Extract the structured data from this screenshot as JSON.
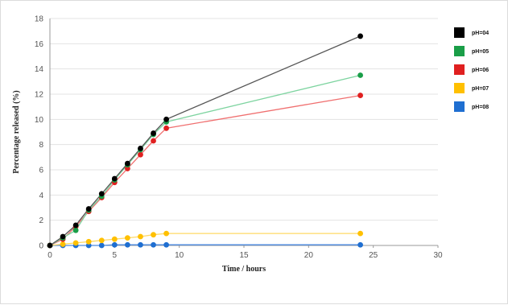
{
  "chart_data": {
    "type": "line",
    "title": "",
    "xlabel": "Time / hours",
    "ylabel": "Percentage released (%)",
    "xlim": [
      0,
      30
    ],
    "ylim": [
      0,
      18
    ],
    "x_ticks": [
      0,
      5,
      10,
      15,
      20,
      25,
      30
    ],
    "y_ticks": [
      0,
      2,
      4,
      6,
      8,
      10,
      12,
      14,
      16,
      18
    ],
    "grid": "horizontal",
    "legend_position": "right",
    "series": [
      {
        "name": "pH=04",
        "color": "#000000",
        "line_color": "#555555",
        "x": [
          0,
          1,
          2,
          3,
          4,
          5,
          6,
          7,
          8,
          9,
          24
        ],
        "y": [
          0,
          0.7,
          1.6,
          2.9,
          4.1,
          5.3,
          6.5,
          7.7,
          8.9,
          10.0,
          16.6
        ]
      },
      {
        "name": "pH=05",
        "color": "#1a9e48",
        "line_color": "#7ed4a0",
        "x": [
          0,
          1,
          2,
          3,
          4,
          5,
          6,
          7,
          8,
          9,
          24
        ],
        "y": [
          0,
          0.6,
          1.2,
          2.8,
          3.9,
          5.2,
          6.4,
          7.6,
          8.8,
          9.8,
          13.5
        ]
      },
      {
        "name": "pH=06",
        "color": "#e02020",
        "line_color": "#f07070",
        "x": [
          0,
          1,
          2,
          3,
          4,
          5,
          6,
          7,
          8,
          9,
          24
        ],
        "y": [
          0,
          0.5,
          1.5,
          2.7,
          3.8,
          5.0,
          6.1,
          7.2,
          8.3,
          9.3,
          11.9
        ]
      },
      {
        "name": "pH=07",
        "color": "#ffc000",
        "line_color": "#ffd966",
        "x": [
          0,
          1,
          2,
          3,
          4,
          5,
          6,
          7,
          8,
          9,
          24
        ],
        "y": [
          0,
          0.1,
          0.2,
          0.3,
          0.4,
          0.5,
          0.6,
          0.7,
          0.85,
          0.95,
          0.95
        ]
      },
      {
        "name": "pH=08",
        "color": "#1f6fd1",
        "line_color": "#4a8ae0",
        "x": [
          0,
          1,
          2,
          3,
          4,
          5,
          6,
          7,
          8,
          9,
          24
        ],
        "y": [
          0,
          0,
          0,
          0,
          0,
          0.05,
          0.05,
          0.05,
          0.05,
          0.05,
          0.05
        ]
      }
    ]
  }
}
